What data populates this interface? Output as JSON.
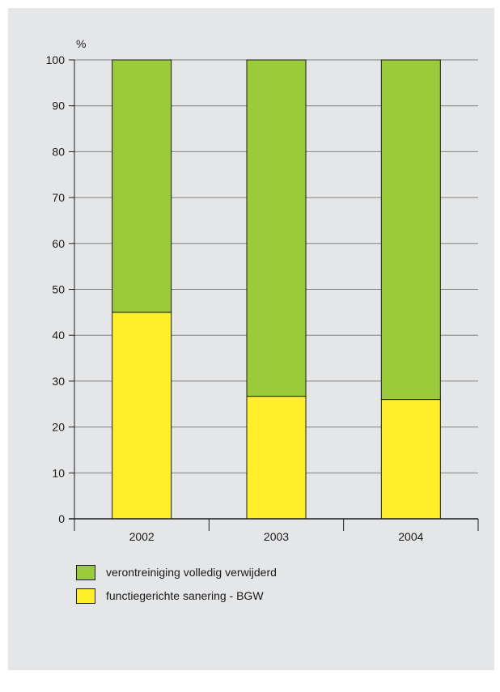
{
  "chart_data": {
    "type": "bar",
    "stacked": true,
    "title": "",
    "xlabel": "",
    "ylabel": "%",
    "ylim": [
      0,
      100
    ],
    "yticks": [
      0,
      10,
      20,
      30,
      40,
      50,
      60,
      70,
      80,
      90,
      100
    ],
    "categories": [
      "2002",
      "2003",
      "2004"
    ],
    "grid": true,
    "legend_position": "bottom-left",
    "series": [
      {
        "name": "functiegerichte sanering - BGW",
        "color": "#ffef2a",
        "values": [
          45,
          26.7,
          26
        ]
      },
      {
        "name": "verontreiniging volledig verwijderd",
        "color": "#9bcb3b",
        "values": [
          55,
          73.3,
          74
        ]
      }
    ]
  },
  "legend": {
    "items": [
      {
        "label": "verontreiniging volledig verwijderd",
        "color": "#9bcb3b"
      },
      {
        "label": "functiegerichte sanering - BGW",
        "color": "#ffef2a"
      }
    ]
  }
}
